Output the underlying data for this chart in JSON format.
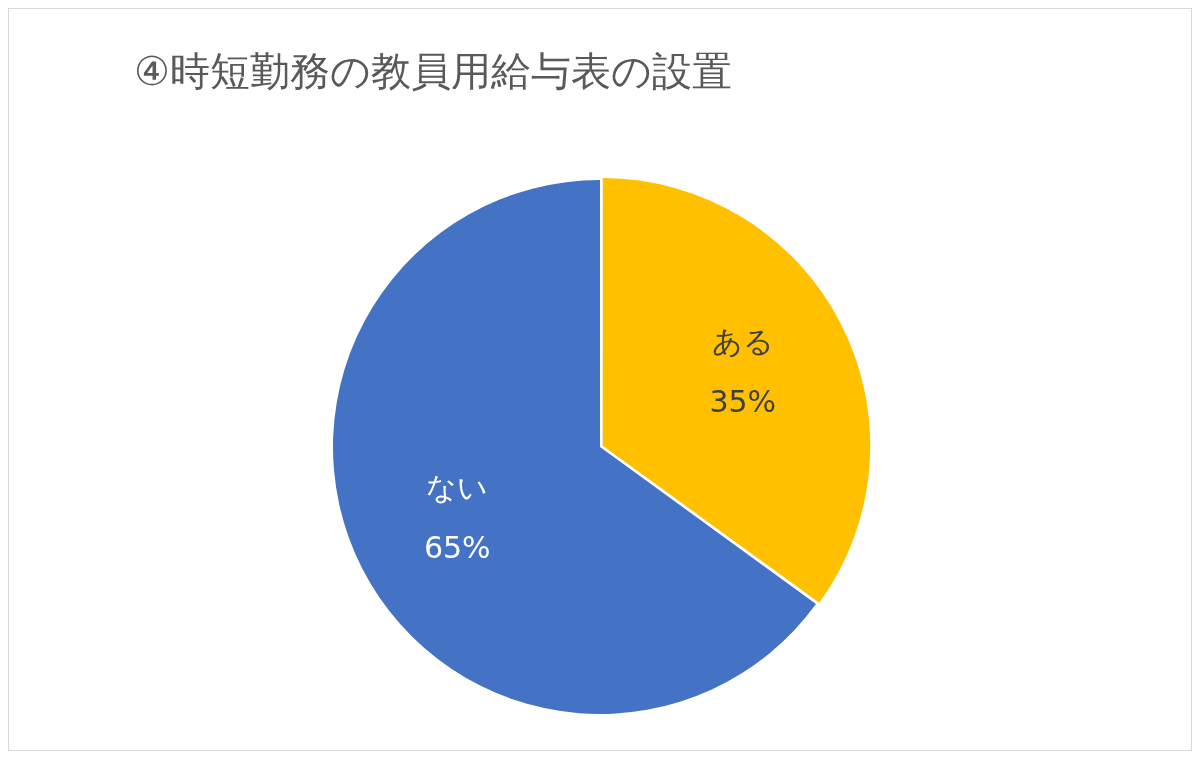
{
  "chart_data": {
    "type": "pie",
    "title": "④時短勤務の教員用給与表の設置",
    "categories": [
      "ある",
      "ない"
    ],
    "values": [
      35,
      65
    ],
    "colors": [
      "#ffc000",
      "#4472c4"
    ],
    "value_labels": [
      "35%",
      "65%"
    ],
    "data_labels": true,
    "legend": false
  }
}
